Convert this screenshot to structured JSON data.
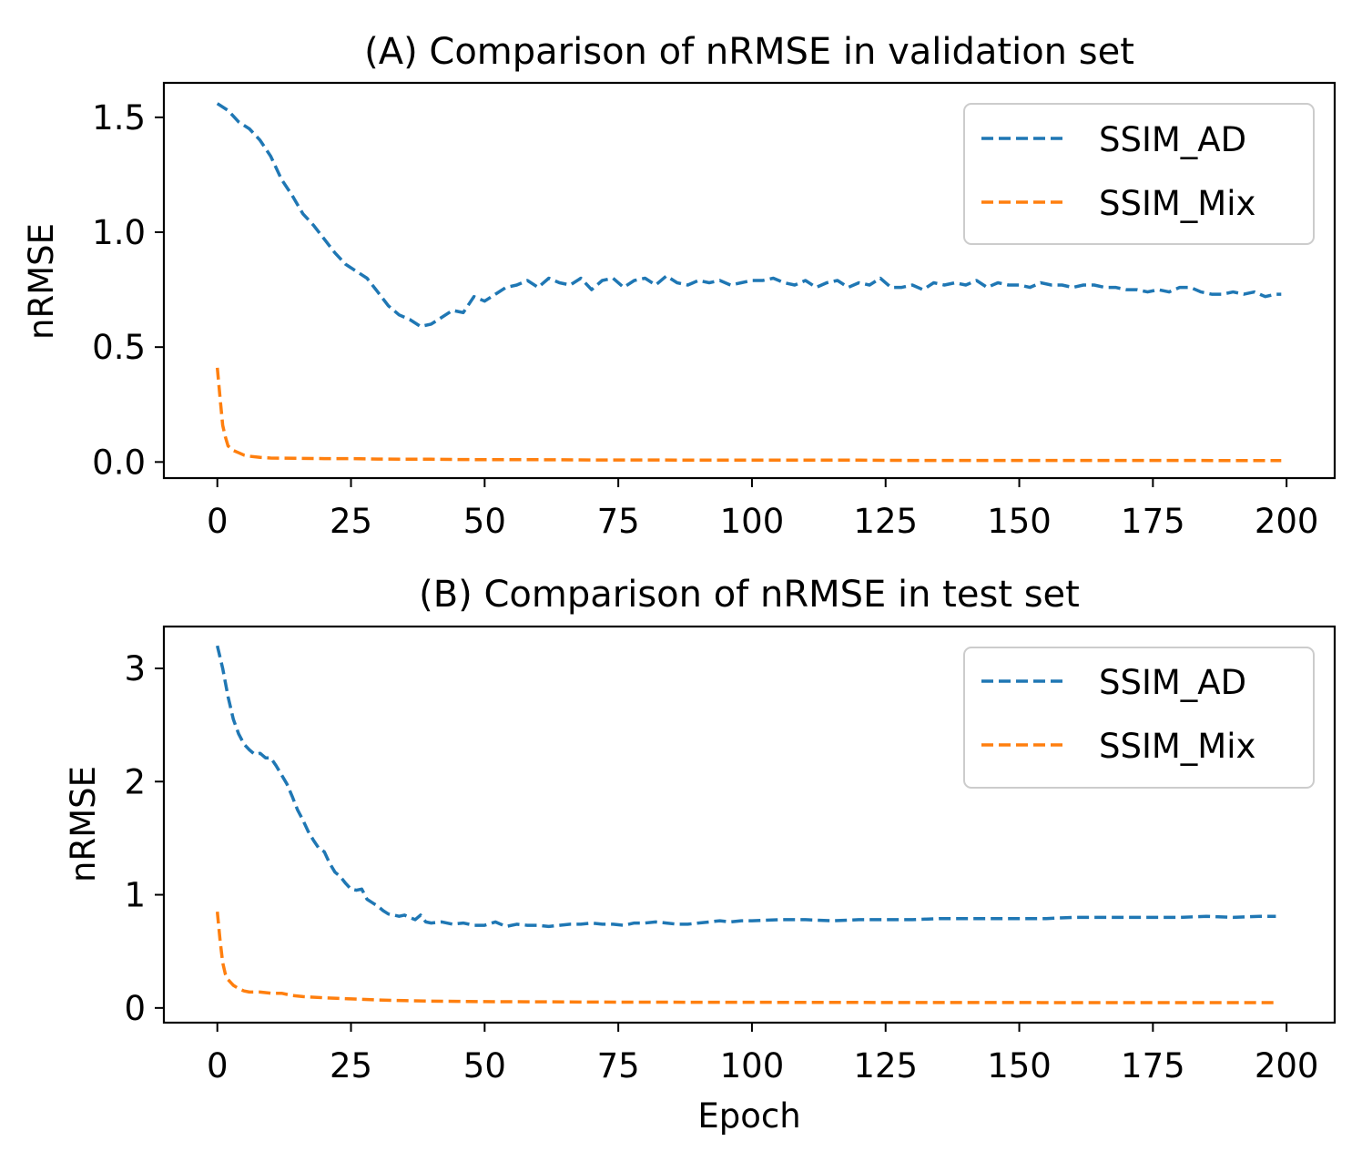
{
  "colors": {
    "ssim_ad": "#1f77b4",
    "ssim_mix": "#ff7f0e"
  },
  "chart_data": [
    {
      "type": "line",
      "title": "(A) Comparison of nRMSE in validation set",
      "xlabel": "",
      "ylabel": "nRMSE",
      "xlim": [
        -10,
        209
      ],
      "ylim": [
        -0.07,
        1.65
      ],
      "xticks": [
        0,
        25,
        50,
        75,
        100,
        125,
        150,
        175,
        200
      ],
      "yticks": [
        0.0,
        0.5,
        1.0,
        1.5
      ],
      "xtick_labels": [
        "0",
        "25",
        "50",
        "75",
        "100",
        "125",
        "150",
        "175",
        "200"
      ],
      "ytick_labels": [
        "0.0",
        "0.5",
        "1.0",
        "1.5"
      ],
      "legend": "top-right",
      "series": [
        {
          "name": "SSIM_AD",
          "color": "#1f77b4",
          "x": [
            0,
            2,
            4,
            6,
            8,
            10,
            12,
            14,
            16,
            18,
            20,
            22,
            24,
            26,
            28,
            30,
            32,
            34,
            36,
            38,
            40,
            42,
            44,
            46,
            48,
            50,
            52,
            54,
            56,
            58,
            60,
            62,
            64,
            66,
            68,
            70,
            72,
            74,
            76,
            78,
            80,
            82,
            84,
            86,
            88,
            90,
            92,
            94,
            96,
            98,
            100,
            102,
            104,
            106,
            108,
            110,
            112,
            114,
            116,
            118,
            120,
            122,
            124,
            126,
            128,
            130,
            132,
            134,
            136,
            138,
            140,
            142,
            144,
            146,
            148,
            150,
            152,
            154,
            156,
            158,
            160,
            162,
            164,
            166,
            168,
            170,
            172,
            174,
            176,
            178,
            180,
            182,
            184,
            186,
            188,
            190,
            192,
            194,
            196,
            198,
            199
          ],
          "values": [
            1.56,
            1.53,
            1.48,
            1.45,
            1.4,
            1.33,
            1.23,
            1.16,
            1.08,
            1.03,
            0.97,
            0.91,
            0.86,
            0.83,
            0.8,
            0.74,
            0.68,
            0.64,
            0.62,
            0.59,
            0.6,
            0.63,
            0.66,
            0.65,
            0.72,
            0.7,
            0.73,
            0.76,
            0.77,
            0.79,
            0.76,
            0.8,
            0.78,
            0.77,
            0.8,
            0.75,
            0.79,
            0.8,
            0.76,
            0.79,
            0.8,
            0.77,
            0.81,
            0.78,
            0.77,
            0.79,
            0.78,
            0.79,
            0.77,
            0.78,
            0.79,
            0.79,
            0.8,
            0.78,
            0.77,
            0.79,
            0.76,
            0.78,
            0.79,
            0.76,
            0.78,
            0.77,
            0.8,
            0.76,
            0.76,
            0.77,
            0.75,
            0.78,
            0.77,
            0.78,
            0.77,
            0.79,
            0.76,
            0.78,
            0.77,
            0.77,
            0.76,
            0.78,
            0.77,
            0.77,
            0.76,
            0.77,
            0.77,
            0.76,
            0.76,
            0.75,
            0.75,
            0.74,
            0.75,
            0.74,
            0.76,
            0.76,
            0.74,
            0.73,
            0.73,
            0.74,
            0.73,
            0.74,
            0.72,
            0.73,
            0.73
          ]
        },
        {
          "name": "SSIM_Mix",
          "color": "#ff7f0e",
          "x": [
            0,
            0.5,
            1,
            1.5,
            2,
            3,
            4,
            5,
            6,
            8,
            10,
            15,
            20,
            25,
            30,
            35,
            40,
            45,
            50,
            60,
            70,
            80,
            90,
            100,
            110,
            120,
            130,
            140,
            150,
            160,
            170,
            180,
            190,
            199
          ],
          "values": [
            0.41,
            0.28,
            0.16,
            0.11,
            0.07,
            0.05,
            0.04,
            0.03,
            0.025,
            0.02,
            0.017,
            0.016,
            0.015,
            0.015,
            0.013,
            0.012,
            0.012,
            0.011,
            0.01,
            0.01,
            0.009,
            0.009,
            0.008,
            0.008,
            0.008,
            0.008,
            0.007,
            0.007,
            0.007,
            0.007,
            0.007,
            0.007,
            0.006,
            0.006
          ]
        }
      ]
    },
    {
      "type": "line",
      "title": "(B) Comparison of nRMSE in test set",
      "xlabel": "Epoch",
      "ylabel": "nRMSE",
      "xlim": [
        -10,
        209
      ],
      "ylim": [
        -0.13,
        3.37
      ],
      "xticks": [
        0,
        25,
        50,
        75,
        100,
        125,
        150,
        175,
        200
      ],
      "yticks": [
        0,
        1,
        2,
        3
      ],
      "xtick_labels": [
        "0",
        "25",
        "50",
        "75",
        "100",
        "125",
        "150",
        "175",
        "200"
      ],
      "ytick_labels": [
        "0",
        "1",
        "2",
        "3"
      ],
      "legend": "top-right",
      "series": [
        {
          "name": "SSIM_AD",
          "color": "#1f77b4",
          "x": [
            0,
            1,
            2,
            3,
            4,
            5,
            6,
            7,
            8,
            9,
            10,
            11,
            12,
            13,
            14,
            15,
            16,
            17,
            18,
            19,
            20,
            21,
            22,
            23,
            24,
            25,
            26,
            27,
            28,
            29,
            30,
            31,
            32,
            33,
            34,
            35,
            36,
            37,
            38,
            39,
            40,
            42,
            44,
            46,
            48,
            50,
            52,
            54,
            56,
            58,
            60,
            62,
            64,
            66,
            68,
            70,
            72,
            74,
            76,
            78,
            80,
            82,
            84,
            86,
            88,
            90,
            92,
            94,
            96,
            98,
            100,
            105,
            110,
            115,
            120,
            125,
            130,
            135,
            140,
            145,
            150,
            155,
            160,
            165,
            170,
            175,
            180,
            185,
            190,
            195,
            198
          ],
          "values": [
            3.2,
            3.0,
            2.75,
            2.55,
            2.42,
            2.33,
            2.28,
            2.24,
            2.25,
            2.21,
            2.21,
            2.14,
            2.06,
            1.98,
            1.87,
            1.75,
            1.66,
            1.56,
            1.48,
            1.41,
            1.38,
            1.28,
            1.2,
            1.16,
            1.1,
            1.05,
            1.04,
            1.05,
            0.96,
            0.93,
            0.9,
            0.86,
            0.83,
            0.82,
            0.81,
            0.82,
            0.8,
            0.78,
            0.82,
            0.76,
            0.75,
            0.76,
            0.74,
            0.75,
            0.73,
            0.73,
            0.76,
            0.72,
            0.74,
            0.73,
            0.73,
            0.72,
            0.73,
            0.74,
            0.74,
            0.75,
            0.74,
            0.74,
            0.73,
            0.75,
            0.75,
            0.76,
            0.75,
            0.74,
            0.74,
            0.75,
            0.76,
            0.77,
            0.76,
            0.77,
            0.77,
            0.78,
            0.78,
            0.77,
            0.78,
            0.78,
            0.78,
            0.79,
            0.79,
            0.79,
            0.79,
            0.79,
            0.8,
            0.8,
            0.8,
            0.8,
            0.8,
            0.81,
            0.8,
            0.81,
            0.81
          ]
        },
        {
          "name": "SSIM_Mix",
          "color": "#ff7f0e",
          "x": [
            0,
            0.5,
            1,
            1.5,
            2,
            3,
            4,
            5,
            6,
            8,
            10,
            12,
            14,
            16,
            20,
            25,
            30,
            35,
            40,
            45,
            50,
            60,
            70,
            80,
            90,
            100,
            110,
            120,
            130,
            140,
            150,
            160,
            170,
            180,
            190,
            198
          ],
          "values": [
            0.85,
            0.6,
            0.4,
            0.3,
            0.25,
            0.2,
            0.17,
            0.15,
            0.14,
            0.14,
            0.13,
            0.13,
            0.11,
            0.1,
            0.09,
            0.08,
            0.07,
            0.065,
            0.06,
            0.058,
            0.056,
            0.054,
            0.052,
            0.051,
            0.05,
            0.05,
            0.049,
            0.049,
            0.048,
            0.048,
            0.048,
            0.047,
            0.047,
            0.047,
            0.047,
            0.047
          ]
        }
      ]
    }
  ]
}
